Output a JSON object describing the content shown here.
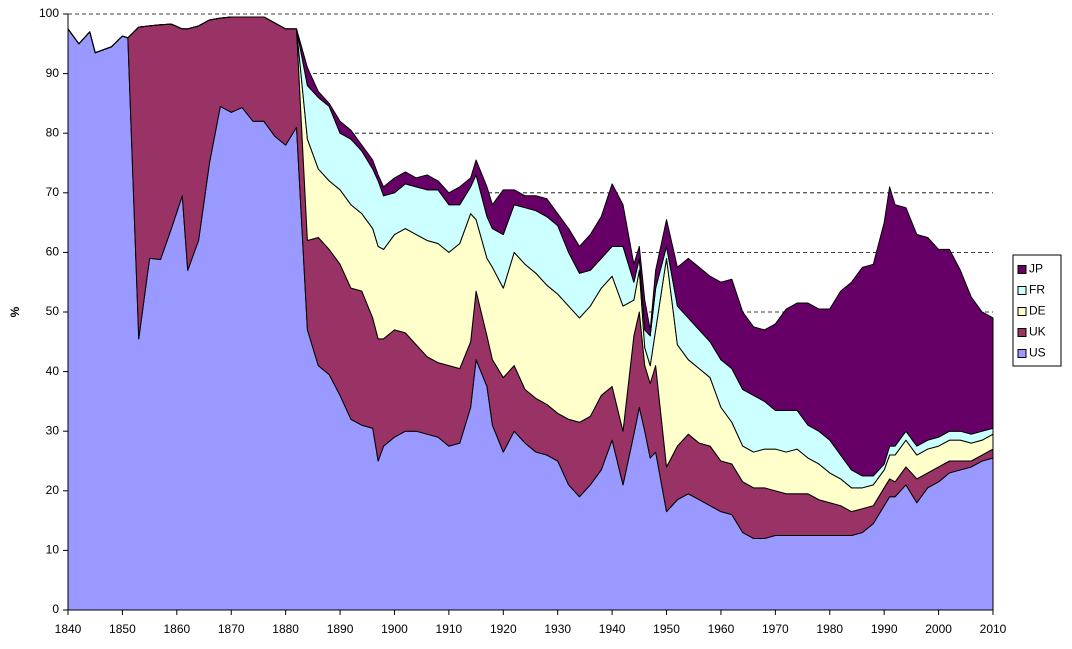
{
  "chart_data": {
    "type": "stacked_area",
    "ylabel": "%",
    "x": [
      1840,
      1842,
      1844,
      1845,
      1848,
      1850,
      1851,
      1853,
      1855,
      1857,
      1859,
      1861,
      1862,
      1864,
      1866,
      1868,
      1870,
      1872,
      1874,
      1876,
      1878,
      1880,
      1882,
      1884,
      1886,
      1888,
      1890,
      1892,
      1894,
      1896,
      1897,
      1898,
      1900,
      1902,
      1904,
      1906,
      1908,
      1910,
      1912,
      1914,
      1915,
      1917,
      1918,
      1920,
      1922,
      1924,
      1926,
      1928,
      1930,
      1932,
      1934,
      1936,
      1938,
      1940,
      1942,
      1944,
      1945,
      1946,
      1947,
      1948,
      1950,
      1952,
      1954,
      1956,
      1958,
      1960,
      1962,
      1964,
      1966,
      1968,
      1970,
      1972,
      1974,
      1976,
      1978,
      1980,
      1982,
      1984,
      1986,
      1988,
      1990,
      1991,
      1992,
      1994,
      1996,
      1998,
      2000,
      2002,
      2004,
      2006,
      2008,
      2010
    ],
    "series": [
      {
        "name": "US",
        "color": "#9999ff",
        "values": [
          97.5,
          95,
          97,
          93.5,
          94.5,
          96.3,
          96,
          45.5,
          59,
          58.8,
          64,
          69.5,
          57,
          62,
          75,
          84.5,
          83.5,
          84.3,
          82,
          82,
          79.5,
          78,
          81,
          47,
          41,
          39.5,
          36,
          32,
          31,
          30.5,
          25,
          27.5,
          29,
          30,
          30,
          29.5,
          29,
          27.5,
          28,
          34,
          42,
          37.5,
          31,
          26.5,
          30,
          28,
          26.5,
          26,
          25,
          21,
          19,
          21,
          23.5,
          28.5,
          21,
          29.5,
          34,
          30,
          25.5,
          26.5,
          16.5,
          18.5,
          19.5,
          18.5,
          17.5,
          16.5,
          16,
          13,
          12,
          12,
          12.5,
          12.5,
          12.5,
          12.5,
          12.5,
          12.5,
          12.5,
          12.5,
          13,
          14.5,
          17.5,
          19,
          19,
          21,
          18,
          20.5,
          21.5,
          23,
          23.5,
          24,
          25,
          25.5
        ]
      },
      {
        "name": "UK",
        "color": "#993366",
        "values": [
          0,
          0,
          0,
          0,
          0,
          0,
          0,
          52.3,
          39,
          39.4,
          34.3,
          28,
          40.5,
          36,
          24,
          14.8,
          16,
          15.2,
          17.5,
          17.5,
          19,
          19.5,
          16.5,
          15,
          21.5,
          21,
          22,
          22,
          22.5,
          18.5,
          20.5,
          18,
          18,
          16.5,
          14.5,
          13,
          12.5,
          13.5,
          12.5,
          11,
          11.5,
          8.5,
          11,
          12.5,
          11,
          9,
          9,
          8.5,
          8,
          11,
          12.5,
          11.5,
          12.5,
          9,
          9,
          16.5,
          16,
          11,
          12.5,
          14.5,
          7.5,
          9,
          10,
          9.5,
          10,
          8.5,
          8.5,
          8.5,
          8.5,
          8.5,
          7.5,
          7,
          7,
          7,
          6,
          5.5,
          5,
          4,
          4,
          3,
          3,
          3,
          2.5,
          3,
          4,
          2.5,
          2.5,
          2,
          1.5,
          1,
          1,
          1.5
        ]
      },
      {
        "name": "DE",
        "color": "#ffffcc",
        "values": [
          0,
          0,
          0,
          0,
          0,
          0,
          0,
          0,
          0,
          0,
          0,
          0,
          0,
          0,
          0,
          0,
          0,
          0,
          0,
          0,
          0,
          0,
          0,
          17,
          11.5,
          11.5,
          12.5,
          14,
          13,
          15,
          15.5,
          15,
          16,
          17.5,
          18.5,
          19.5,
          20,
          19,
          21,
          21.5,
          12,
          13,
          15.5,
          15,
          19,
          21,
          21,
          20,
          20,
          19,
          17.5,
          18.5,
          18,
          18.5,
          21,
          6,
          7,
          3,
          3,
          6,
          35,
          17,
          12.5,
          12.5,
          11.5,
          9,
          7,
          6,
          6,
          6.5,
          7,
          7,
          7.5,
          6,
          6,
          5,
          4.5,
          4,
          3.5,
          3.5,
          3,
          4,
          4.5,
          4.5,
          4,
          4,
          3.5,
          3.5,
          3.5,
          3,
          2.5,
          2.5
        ]
      },
      {
        "name": "FR",
        "color": "#ccffff",
        "values": [
          0,
          0,
          0,
          0,
          0,
          0,
          0,
          0,
          0,
          0,
          0,
          0,
          0,
          0,
          0,
          0,
          0,
          0,
          0,
          0,
          0,
          0,
          0,
          9,
          12,
          12.5,
          9.5,
          11,
          10.5,
          10,
          11,
          9,
          7,
          7.5,
          8,
          8.5,
          9,
          8,
          6.5,
          4.5,
          7.5,
          7,
          6.5,
          9,
          8,
          9.5,
          10.5,
          11.5,
          11.5,
          9,
          7.5,
          6,
          5,
          5,
          10,
          3,
          2,
          3,
          5,
          7,
          2,
          6.5,
          7,
          6.5,
          6,
          8,
          9,
          9.5,
          9.5,
          8,
          6.5,
          7,
          6.5,
          5.5,
          5.5,
          5.5,
          4,
          3,
          2,
          1.5,
          1,
          1.5,
          1.5,
          1.5,
          1.5,
          1.5,
          1.5,
          1.5,
          1.5,
          1.5,
          1.5,
          1
        ]
      },
      {
        "name": "JP",
        "color": "#660066",
        "values": [
          0,
          0,
          0,
          0,
          0,
          0,
          0,
          0,
          0,
          0,
          0,
          0,
          0,
          0,
          0,
          0,
          0,
          0,
          0,
          0,
          0,
          0,
          0,
          3,
          1,
          0.5,
          2,
          1.5,
          1,
          1.5,
          1,
          1.5,
          2.5,
          2,
          1.5,
          2.5,
          1.5,
          2,
          3,
          1.5,
          2.5,
          5,
          4,
          7.5,
          2.5,
          2,
          2.5,
          3,
          2,
          4,
          4.5,
          6,
          7,
          10.5,
          7,
          3,
          2,
          5,
          1,
          3,
          4.5,
          6.5,
          10,
          10.5,
          11,
          13,
          15,
          13,
          11.5,
          12,
          14.5,
          17,
          18,
          20.5,
          20.5,
          22,
          27.5,
          31.5,
          35,
          35.5,
          40.5,
          43.5,
          40.5,
          37.5,
          35.5,
          34,
          31.5,
          30.5,
          27,
          23,
          20,
          18.5
        ]
      }
    ],
    "xlim": [
      1840,
      2010
    ],
    "xticks": [
      1840,
      1850,
      1860,
      1870,
      1880,
      1890,
      1900,
      1910,
      1920,
      1930,
      1940,
      1950,
      1960,
      1970,
      1980,
      1990,
      2000,
      2010
    ],
    "ylim": [
      0,
      100
    ],
    "yticks": [
      0,
      10,
      20,
      30,
      40,
      50,
      60,
      70,
      80,
      90,
      100
    ],
    "grid": true,
    "legend": "right"
  }
}
